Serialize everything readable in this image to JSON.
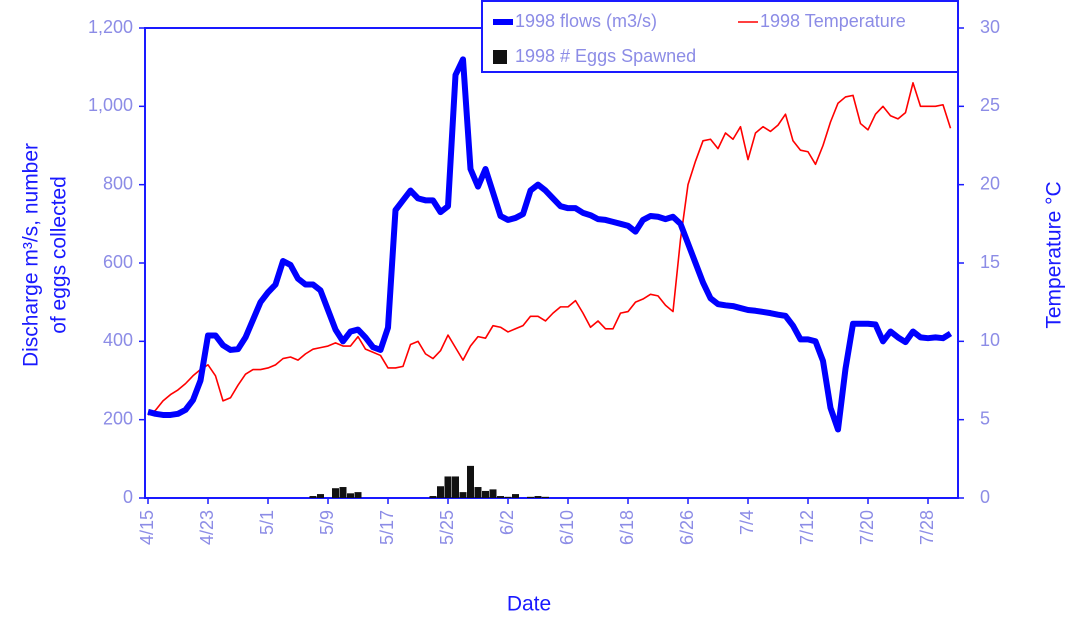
{
  "chart_data": {
    "type": "line",
    "x_label": "Date",
    "y_label": [
      "Discharge m³/s, number",
      "of  eggs collected"
    ],
    "y2_label": "Temperature °C",
    "categories": [
      "4/15",
      null,
      null,
      null,
      null,
      null,
      null,
      null,
      "4/23",
      null,
      null,
      null,
      null,
      null,
      null,
      null,
      "5/1",
      null,
      null,
      null,
      null,
      null,
      null,
      null,
      "5/9",
      null,
      null,
      null,
      null,
      null,
      null,
      null,
      "5/17",
      null,
      null,
      null,
      null,
      null,
      null,
      null,
      "5/25",
      null,
      null,
      null,
      null,
      null,
      null,
      null,
      "6/2",
      null,
      null,
      null,
      null,
      null,
      null,
      null,
      "6/10",
      null,
      null,
      null,
      null,
      null,
      null,
      null,
      "6/18",
      null,
      null,
      null,
      null,
      null,
      null,
      null,
      "6/26",
      null,
      null,
      null,
      null,
      null,
      null,
      null,
      "7/4",
      null,
      null,
      null,
      null,
      null,
      null,
      null,
      "7/12",
      null,
      null,
      null,
      null,
      null,
      null,
      null,
      "7/20",
      null,
      null,
      null,
      null,
      null,
      null,
      null,
      "7/28",
      null,
      null,
      null
    ],
    "ylim": [
      0,
      1200
    ],
    "yticks": [
      0,
      200,
      400,
      600,
      800,
      {
        "value": 1000,
        "label": "1,000"
      },
      {
        "value": 1200,
        "label": "1,200"
      }
    ],
    "y2lim": [
      0,
      30
    ],
    "y2ticks": [
      0,
      5,
      10,
      15,
      20,
      25,
      30
    ],
    "legend": "top-right",
    "series": [
      {
        "name": "1998 flows (m3/s)",
        "type": "line",
        "color": "#0000ff",
        "values": [
          220,
          215,
          212,
          212,
          215,
          225,
          250,
          300,
          415,
          415,
          390,
          378,
          380,
          410,
          455,
          500,
          525,
          545,
          605,
          595,
          560,
          545,
          545,
          530,
          480,
          430,
          400,
          425,
          430,
          410,
          385,
          378,
          435,
          735,
          760,
          785,
          765,
          760,
          760,
          730,
          745,
          1080,
          1120,
          840,
          795,
          840,
          780,
          720,
          710,
          715,
          725,
          785,
          800,
          785,
          765,
          745,
          740,
          740,
          728,
          722,
          712,
          710,
          705,
          700,
          695,
          680,
          710,
          720,
          718,
          712,
          718,
          700,
          650,
          600,
          550,
          510,
          495,
          492,
          490,
          485,
          480,
          478,
          475,
          472,
          468,
          465,
          440,
          405,
          405,
          400,
          350,
          230,
          175,
          330,
          445,
          445,
          445,
          443,
          400,
          425,
          410,
          398,
          425,
          410,
          408,
          410,
          408,
          420
        ]
      },
      {
        "name": "1998 Temperature",
        "type": "line",
        "axis": "y2",
        "color": "#ff0000",
        "values": [
          5.3,
          5.6,
          6.2,
          6.6,
          6.9,
          7.3,
          7.8,
          8.2,
          8.5,
          7.8,
          6.2,
          6.4,
          7.2,
          7.9,
          8.2,
          8.2,
          8.3,
          8.5,
          8.9,
          9.0,
          8.8,
          9.2,
          9.5,
          9.6,
          9.7,
          9.9,
          9.7,
          9.7,
          10.3,
          9.5,
          9.3,
          9.1,
          8.3,
          8.3,
          8.4,
          9.8,
          10.0,
          9.2,
          8.9,
          9.4,
          10.4,
          9.6,
          8.8,
          9.7,
          10.3,
          10.2,
          11.0,
          10.9,
          10.6,
          10.8,
          11.0,
          11.6,
          11.6,
          11.3,
          11.8,
          12.2,
          12.2,
          12.6,
          11.8,
          10.9,
          11.3,
          10.8,
          10.8,
          11.8,
          11.9,
          12.5,
          12.7,
          13.0,
          12.9,
          12.3,
          11.9,
          16.5,
          20.0,
          21.5,
          22.8,
          22.9,
          22.3,
          23.3,
          22.9,
          23.7,
          21.6,
          23.3,
          23.7,
          23.4,
          23.8,
          24.5,
          22.8,
          22.2,
          22.1,
          21.3,
          22.5,
          24.0,
          25.2,
          25.6,
          25.7,
          23.9,
          23.5,
          24.5,
          25.0,
          24.4,
          24.2,
          24.6,
          26.5,
          25.0,
          25.0,
          25.0,
          25.1,
          23.6
        ]
      },
      {
        "name": "1998 # Eggs Spawned",
        "type": "bar",
        "color": "#111111",
        "values": [
          0,
          0,
          0,
          0,
          0,
          0,
          0,
          0,
          0,
          0,
          0,
          0,
          0,
          0,
          0,
          0,
          0,
          0,
          0,
          0,
          0,
          0,
          5,
          10,
          0,
          25,
          28,
          12,
          15,
          0,
          0,
          0,
          0,
          0,
          0,
          0,
          0,
          0,
          5,
          30,
          55,
          55,
          15,
          82,
          28,
          18,
          22,
          5,
          3,
          10,
          0,
          3,
          5,
          3,
          0,
          0,
          0,
          0,
          0,
          0,
          0,
          0,
          0,
          0,
          0,
          0,
          0,
          0,
          0,
          0,
          0,
          0,
          0,
          0,
          0,
          0,
          0,
          0,
          0,
          0,
          0,
          0,
          0,
          0,
          0,
          0,
          0,
          0,
          0,
          0,
          0,
          0,
          0,
          0,
          0,
          0,
          0,
          0,
          0,
          0,
          0,
          0,
          0,
          0,
          0,
          0,
          0,
          0
        ]
      }
    ]
  }
}
